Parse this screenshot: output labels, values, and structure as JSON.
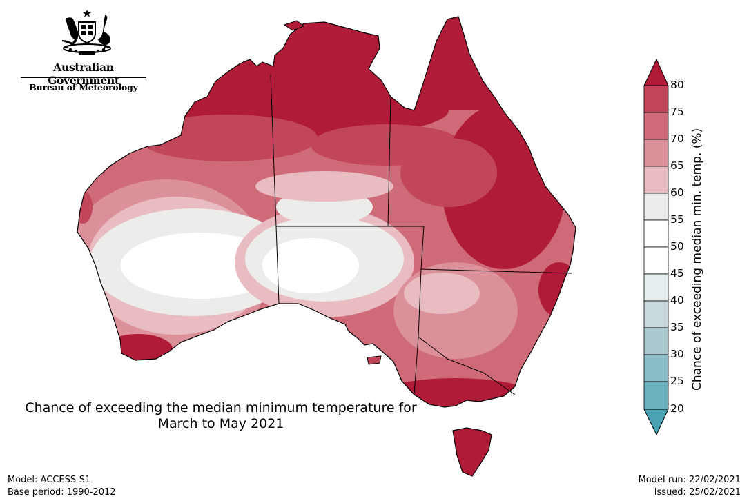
{
  "header": {
    "government": "Australian Government",
    "bureau": "Bureau of Meteorology"
  },
  "map": {
    "title_line1": "Chance of exceeding the median minimum temperature for",
    "title_line2": "March to May 2021",
    "region": "Australia"
  },
  "colorbar": {
    "label": "Chance of exceeding median min. temp. (%)",
    "ticks": [
      "80",
      "75",
      "70",
      "65",
      "60",
      "55",
      "50",
      "45",
      "40",
      "35",
      "30",
      "25",
      "20"
    ],
    "colors": {
      "c80_up": "#b01c38",
      "c75_80": "#c2465a",
      "c70_75": "#cf6a78",
      "c65_70": "#dc9099",
      "c60_65": "#e8bcc0",
      "c55_60": "#ececea",
      "c50_55": "#ffffff",
      "c45_50": "#ffffff",
      "c40_45": "#e6eef0",
      "c35_40": "#c9d8dc",
      "c30_35": "#a9c9cf",
      "c25_30": "#8bbdc6",
      "c20_25": "#6bb1bd",
      "c_below20": "#4aa3b3"
    }
  },
  "footer": {
    "model": "Model: ACCESS-S1",
    "base_period": "Base period: 1990-2012",
    "model_run": "Model run: 22/02/2021",
    "issued": "Issued: 25/02/2021"
  }
}
